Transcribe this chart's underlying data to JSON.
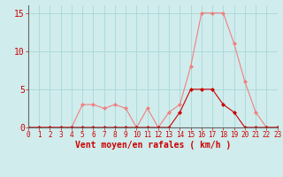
{
  "x": [
    0,
    1,
    2,
    3,
    4,
    5,
    6,
    7,
    8,
    9,
    10,
    11,
    12,
    13,
    14,
    15,
    16,
    17,
    18,
    19,
    20,
    21,
    22,
    23
  ],
  "y_rafales": [
    0,
    0,
    0,
    0,
    0,
    3,
    3,
    2.5,
    3,
    2.5,
    0,
    2.5,
    0,
    2,
    3,
    8,
    15,
    15,
    15,
    11,
    6,
    2,
    0,
    0
  ],
  "y_moyen": [
    0,
    0,
    0,
    0,
    0,
    0,
    0,
    0,
    0,
    0,
    0,
    0,
    0,
    0,
    2,
    5,
    5,
    5,
    3,
    2,
    0,
    0,
    0,
    0
  ],
  "color_rafales": "#f08080",
  "color_moyen": "#cc0000",
  "xlabel": "Vent moyen/en rafales ( km/h )",
  "xlim": [
    0,
    23
  ],
  "ylim": [
    0,
    16
  ],
  "yticks": [
    0,
    5,
    10,
    15
  ],
  "xticks": [
    0,
    1,
    2,
    3,
    4,
    5,
    6,
    7,
    8,
    9,
    10,
    11,
    12,
    13,
    14,
    15,
    16,
    17,
    18,
    19,
    20,
    21,
    22,
    23
  ],
  "grid_color": "#a8d8d8",
  "bg_color": "#d0ecec",
  "tick_color": "#cc0000",
  "xlabel_color": "#cc0000",
  "xlabel_fontsize": 7,
  "ytick_fontsize": 7,
  "xtick_fontsize": 5.5,
  "line_width": 0.8,
  "marker_size": 2.0
}
